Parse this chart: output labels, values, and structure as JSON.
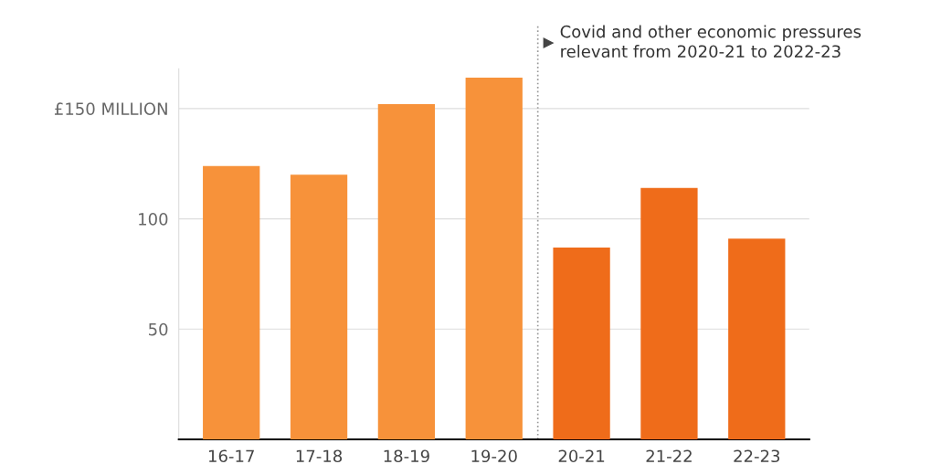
{
  "chart_data": {
    "type": "bar",
    "categories": [
      "16-17",
      "17-18",
      "18-19",
      "19-20",
      "20-21",
      "21-22",
      "22-23"
    ],
    "values": [
      124,
      120,
      152,
      164,
      87,
      114,
      91
    ],
    "colors": [
      "#f7923a",
      "#f7923a",
      "#f7923a",
      "#f7923a",
      "#ef6c1a",
      "#ef6c1a",
      "#ef6c1a"
    ],
    "ylim": [
      0,
      168
    ],
    "yticks": [
      50,
      100,
      {
        "value": 150,
        "label": "£150 MILLION"
      }
    ],
    "grid": "y",
    "ref_lines": [
      {
        "axis": "x",
        "value": "20-21",
        "label": "Covid and other economic pressures\nrelevant from 2020-21 to 2022-23",
        "line_style": "dotted",
        "color": "#999999"
      }
    ]
  }
}
